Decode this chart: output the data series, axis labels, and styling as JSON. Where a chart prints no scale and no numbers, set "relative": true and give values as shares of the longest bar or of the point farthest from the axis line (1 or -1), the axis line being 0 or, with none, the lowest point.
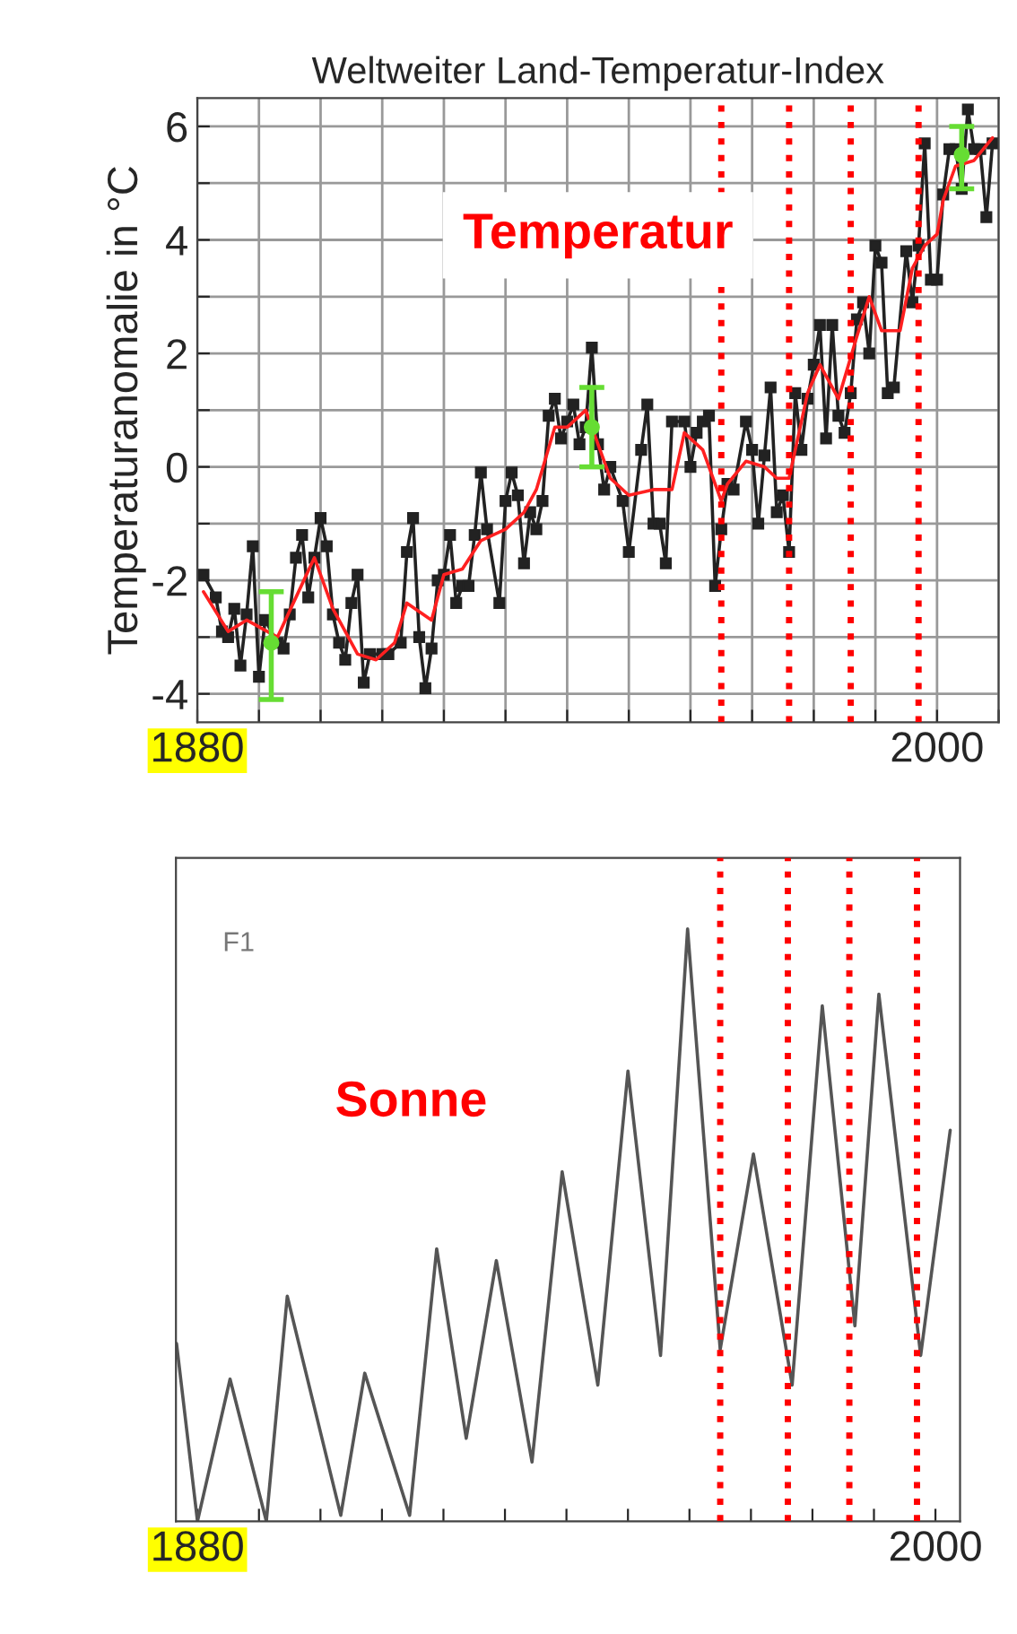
{
  "chart_data": [
    {
      "type": "line",
      "title": "Weltweiter Land-Temperatur-Index",
      "ylabel": "Temperaturanomalie in °C",
      "xlim": [
        1880,
        2010
      ],
      "ylim": [
        -4.5,
        6.5
      ],
      "xticks": [
        1880,
        {
          "value": 1890,
          "label": null
        },
        {
          "value": 1900,
          "label": null
        },
        {
          "value": 1910,
          "label": null
        },
        {
          "value": 1920,
          "label": null
        },
        {
          "value": 1930,
          "label": null
        },
        {
          "value": 1940,
          "label": null
        },
        {
          "value": 1950,
          "label": null
        },
        {
          "value": 1960,
          "label": null
        },
        {
          "value": 1970,
          "label": null
        },
        {
          "value": 1980,
          "label": null
        },
        {
          "value": 1990,
          "label": null
        },
        2000,
        {
          "value": 2010,
          "label": null
        }
      ],
      "yticks": [
        -4,
        {
          "value": -3,
          "label": null
        },
        -2,
        {
          "value": -1,
          "label": null
        },
        0,
        {
          "value": 1,
          "label": null
        },
        2,
        {
          "value": 3,
          "label": null
        },
        4,
        {
          "value": 5,
          "label": null
        },
        6
      ],
      "grid": true,
      "legend": false,
      "line_style": "solid",
      "annotations": [
        "Temperatur"
      ],
      "ref_lines": [
        {
          "axis": "x",
          "value": 1965,
          "label": null,
          "color": "#ff0000",
          "line_style": "dotted"
        },
        {
          "axis": "x",
          "value": 1976,
          "label": null,
          "color": "#ff0000",
          "line_style": "dotted"
        },
        {
          "axis": "x",
          "value": 1986,
          "label": null,
          "color": "#ff0000",
          "line_style": "dotted"
        },
        {
          "axis": "x",
          "value": 1997,
          "label": null,
          "color": "#ff0000",
          "line_style": "dotted"
        }
      ],
      "series": [
        {
          "marker": "square",
          "color": "#222222",
          "x": [
            1881,
            1883,
            1884,
            1885,
            1886,
            1887,
            1888,
            1889,
            1890,
            1891,
            1893,
            1894,
            1895,
            1896,
            1897,
            1898,
            1899,
            1900,
            1901,
            1902,
            1903,
            1904,
            1905,
            1906,
            1907,
            1908,
            1910,
            1911,
            1913,
            1914,
            1915,
            1916,
            1917,
            1918,
            1919,
            1920,
            1921,
            1922,
            1923,
            1924,
            1925,
            1926,
            1927,
            1929,
            1930,
            1931,
            1932,
            1933,
            1934,
            1935,
            1936,
            1937,
            1938,
            1939,
            1940,
            1941,
            1942,
            1943,
            1944,
            1945,
            1946,
            1947,
            1949,
            1950,
            1952,
            1953,
            1954,
            1955,
            1956,
            1957,
            1959,
            1960,
            1961,
            1962,
            1963,
            1964,
            1965,
            1966,
            1967,
            1969,
            1970,
            1971,
            1972,
            1973,
            1974,
            1975,
            1976,
            1977,
            1978,
            1979,
            1980,
            1981,
            1982,
            1983,
            1984,
            1985,
            1986,
            1987,
            1988,
            1989,
            1990,
            1991,
            1992,
            1993,
            1995,
            1996,
            1997,
            1998,
            1999,
            2000,
            2001,
            2002,
            2003,
            2004,
            2005,
            2006,
            2007,
            2008,
            2009
          ],
          "values": [
            -1.9,
            -2.3,
            -2.9,
            -3.0,
            -2.5,
            -3.5,
            -2.6,
            -1.4,
            -3.7,
            -2.7,
            -3.1,
            -3.2,
            -2.6,
            -1.6,
            -1.2,
            -2.3,
            -1.6,
            -0.9,
            -1.4,
            -2.6,
            -3.1,
            -3.4,
            -2.4,
            -1.9,
            -3.8,
            -3.3,
            -3.3,
            -3.3,
            -3.1,
            -1.5,
            -0.9,
            -3.0,
            -3.9,
            -3.2,
            -2.0,
            -1.9,
            -1.2,
            -2.4,
            -2.1,
            -2.1,
            -1.2,
            -0.1,
            -1.1,
            -2.4,
            -0.6,
            -0.1,
            -0.5,
            -1.7,
            -0.8,
            -1.1,
            -0.6,
            0.9,
            1.2,
            0.5,
            0.8,
            1.1,
            0.4,
            0.7,
            2.1,
            0.4,
            -0.4,
            0.0,
            -0.6,
            -1.5,
            0.3,
            1.1,
            -1.0,
            -1.0,
            -1.7,
            0.8,
            0.8,
            0.0,
            0.6,
            0.8,
            0.9,
            -2.1,
            -1.1,
            -0.3,
            -0.4,
            0.8,
            0.3,
            -1.0,
            0.2,
            1.4,
            -0.8,
            -0.5,
            -1.5,
            1.3,
            0.3,
            1.2,
            1.8,
            2.5,
            0.5,
            2.5,
            0.9,
            0.6,
            1.3,
            2.6,
            2.9,
            2.0,
            3.9,
            3.6,
            1.3,
            1.4,
            3.8,
            2.9,
            3.9,
            5.7,
            3.3,
            3.3,
            4.8,
            5.6,
            5.6,
            4.9,
            6.3,
            5.6,
            5.6,
            4.4,
            5.7
          ]
        },
        {
          "marker": "none",
          "color": "#ff2020",
          "x": [
            1881,
            1885,
            1888,
            1893,
            1896,
            1899,
            1902,
            1906,
            1909,
            1912,
            1914,
            1918,
            1920,
            1923,
            1926,
            1930,
            1933,
            1935,
            1938,
            1940,
            1943,
            1945,
            1947,
            1950,
            1954,
            1957,
            1959,
            1962,
            1965,
            1966,
            1969,
            1972,
            1974,
            1976,
            1979,
            1981,
            1984,
            1987,
            1989,
            1991,
            1994,
            1996,
            1998,
            2000,
            2001,
            2003,
            2006,
            2009
          ],
          "values": [
            -2.2,
            -2.9,
            -2.7,
            -3.0,
            -2.3,
            -1.6,
            -2.5,
            -3.3,
            -3.4,
            -3.1,
            -2.4,
            -2.7,
            -1.9,
            -1.8,
            -1.3,
            -1.1,
            -0.8,
            -0.4,
            0.7,
            0.7,
            1.0,
            0.4,
            -0.2,
            -0.5,
            -0.4,
            -0.4,
            0.6,
            0.3,
            -0.6,
            -0.3,
            0.1,
            0.0,
            -0.2,
            -0.2,
            1.3,
            1.8,
            1.2,
            2.3,
            3.0,
            2.4,
            2.4,
            3.5,
            3.9,
            4.1,
            4.7,
            5.3,
            5.4,
            5.8
          ]
        },
        {
          "type": "scatter",
          "marker": "circle",
          "color": "#66dd33",
          "x": [
            1892,
            1944,
            2004
          ],
          "values": [
            -3.1,
            0.7,
            5.5
          ],
          "errors": [
            [
              -4.1,
              -2.2
            ],
            [
              0.0,
              1.4
            ],
            [
              4.9,
              6.0
            ]
          ]
        }
      ]
    },
    {
      "type": "line",
      "relative": true,
      "xlim": [
        1876.5,
        2004
      ],
      "xticks": [
        1880,
        {
          "value": 1890,
          "label": null
        },
        {
          "value": 1900,
          "label": null
        },
        {
          "value": 1910,
          "label": null
        },
        {
          "value": 1920,
          "label": null
        },
        {
          "value": 1930,
          "label": null
        },
        {
          "value": 1940,
          "label": null
        },
        {
          "value": 1950,
          "label": null
        },
        {
          "value": 1960,
          "label": null
        },
        {
          "value": 1970,
          "label": null
        },
        {
          "value": 1980,
          "label": null
        },
        {
          "value": 1990,
          "label": null
        },
        2000
      ],
      "grid": false,
      "legend": false,
      "line_style": "solid",
      "annotations": [
        "F1",
        "Sonne"
      ],
      "ref_lines": [
        {
          "axis": "x",
          "value": 1965,
          "label": null,
          "color": "#ff0000",
          "line_style": "dotted"
        },
        {
          "axis": "x",
          "value": 1976,
          "label": null,
          "color": "#ff0000",
          "line_style": "dotted"
        },
        {
          "axis": "x",
          "value": 1986,
          "label": null,
          "color": "#ff0000",
          "line_style": "dotted"
        },
        {
          "axis": "x",
          "value": 1997,
          "label": null,
          "color": "#ff0000",
          "line_style": "dotted"
        }
      ],
      "series": [
        {
          "marker": "none",
          "color": "#555555",
          "x": [
            1876.6,
            1880.0,
            1885.3,
            1891.2,
            1894.6,
            1903.3,
            1907.2,
            1914.5,
            1918.9,
            1923.7,
            1928.6,
            1934.4,
            1939.3,
            1945.1,
            1950.0,
            1955.3,
            1959.7,
            1965.0,
            1970.4,
            1976.7,
            1981.6,
            1986.9,
            1990.8,
            1997.6,
            2002.4
          ],
          "values": [
            0.3,
            0.0,
            0.24,
            0.0,
            0.38,
            0.01,
            0.25,
            0.01,
            0.46,
            0.14,
            0.44,
            0.1,
            0.59,
            0.23,
            0.76,
            0.28,
            1.0,
            0.29,
            0.62,
            0.23,
            0.87,
            0.33,
            0.89,
            0.28,
            0.66
          ]
        }
      ]
    }
  ]
}
